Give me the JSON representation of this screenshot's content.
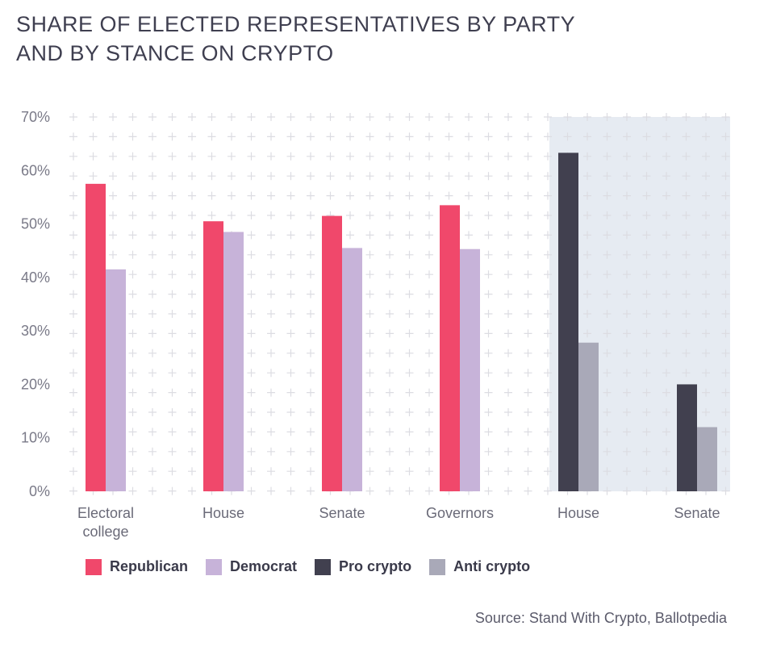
{
  "title": {
    "line1": "SHARE OF ELECTED REPRESENTATIVES BY PARTY",
    "line2": "AND BY STANCE ON CRYPTO"
  },
  "source": "Source: Stand With Crypto, Ballotpedia",
  "colors": {
    "republican": "#f0486b",
    "democrat": "#c7b3d9",
    "pro_crypto": "#41404f",
    "anti_crypto": "#a9a9b8",
    "highlight_bg": "#e6ebf2",
    "grid_plus": "#dcdce2",
    "axis_text": "#7a7a88"
  },
  "chart_data": {
    "type": "bar",
    "title": "SHARE OF ELECTED REPRESENTATIVES BY PARTY AND BY STANCE ON CRYPTO",
    "ylabel": "",
    "xlabel": "",
    "ylim": [
      0,
      70
    ],
    "yticks": [
      "0%",
      "10%",
      "20%",
      "30%",
      "40%",
      "50%",
      "60%",
      "70%"
    ],
    "groups": [
      {
        "label": [
          "Electoral",
          "college"
        ],
        "bars": [
          {
            "series": "Republican",
            "value": 57.5
          },
          {
            "series": "Democrat",
            "value": 41.5
          }
        ]
      },
      {
        "label": [
          "House"
        ],
        "bars": [
          {
            "series": "Republican",
            "value": 50.5
          },
          {
            "series": "Democrat",
            "value": 48.5
          }
        ]
      },
      {
        "label": [
          "Senate"
        ],
        "bars": [
          {
            "series": "Republican",
            "value": 51.5
          },
          {
            "series": "Democrat",
            "value": 45.5
          }
        ]
      },
      {
        "label": [
          "Governors"
        ],
        "bars": [
          {
            "series": "Republican",
            "value": 53.5
          },
          {
            "series": "Democrat",
            "value": 45.3
          }
        ]
      },
      {
        "label": [
          "House"
        ],
        "bars": [
          {
            "series": "Pro crypto",
            "value": 63.3
          },
          {
            "series": "Anti crypto",
            "value": 27.8
          }
        ]
      },
      {
        "label": [
          "Senate"
        ],
        "bars": [
          {
            "series": "Pro crypto",
            "value": 20.0
          },
          {
            "series": "Anti crypto",
            "value": 12.0
          }
        ]
      }
    ],
    "legend": [
      "Republican",
      "Democrat",
      "Pro crypto",
      "Anti crypto"
    ],
    "highlighted_groups": [
      4,
      5
    ]
  }
}
